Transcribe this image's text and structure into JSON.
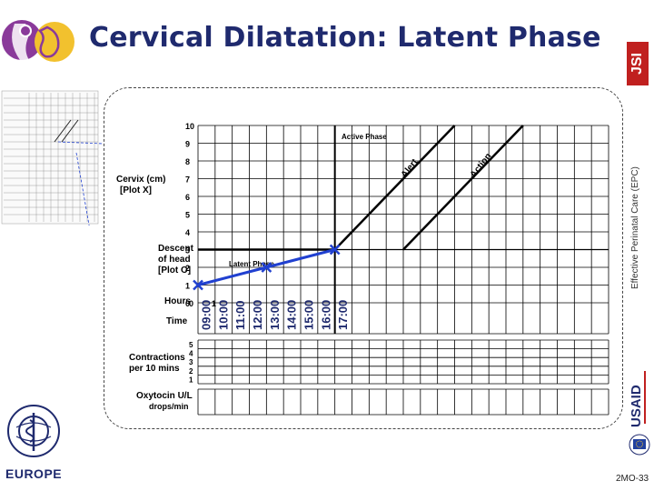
{
  "slide": {
    "title": "Cervical Dilatation: Latent Phase",
    "code": "2MO-33",
    "side_text": "Effective Perinatal Care (EPC)",
    "logos": {
      "jsi": "JSI",
      "usaid": "USAID",
      "who_europe": "EUROPE"
    }
  },
  "partograph": {
    "cervix_label_line1": "Cervix (cm)",
    "cervix_label_line2": "[Plot X]",
    "descent_label_line1": "Descent",
    "descent_label_line2": "of head",
    "descent_label_line3": "[Plot O]",
    "hours_label": "Hours",
    "time_label": "Time",
    "active_phase_label": "Active Phase",
    "latent_phase_label": "Latent Phase",
    "alert_label": "Alert",
    "action_label": "Action",
    "contractions_label_line1": "Contractions",
    "contractions_label_line2": "per 10 mins",
    "oxytocin_label_line1": "Oxytocin U/L",
    "oxytocin_label_line2": "drops/min",
    "y_ticks": [
      "10",
      "9",
      "8",
      "7",
      "6",
      "5",
      "4",
      "3",
      "2",
      "1",
      "0"
    ],
    "hours_ticks": [
      "0",
      "1"
    ],
    "time_values": [
      "09:00",
      "10:00",
      "11:00",
      "12:00",
      "13:00",
      "14:00",
      "15:00",
      "16:00",
      "17:00"
    ],
    "contraction_ticks": [
      "5",
      "4",
      "3",
      "2",
      "1"
    ],
    "colors": {
      "plot_line": "#2040d0",
      "grid": "#000000"
    },
    "plot_points_hours_cm": [
      [
        0,
        1
      ],
      [
        4,
        2
      ],
      [
        8,
        3
      ]
    ],
    "latent_line_cm": 3,
    "icons": [
      "mother-child-logo",
      "who-emblem",
      "usaid-logo",
      "eu-flag"
    ]
  }
}
